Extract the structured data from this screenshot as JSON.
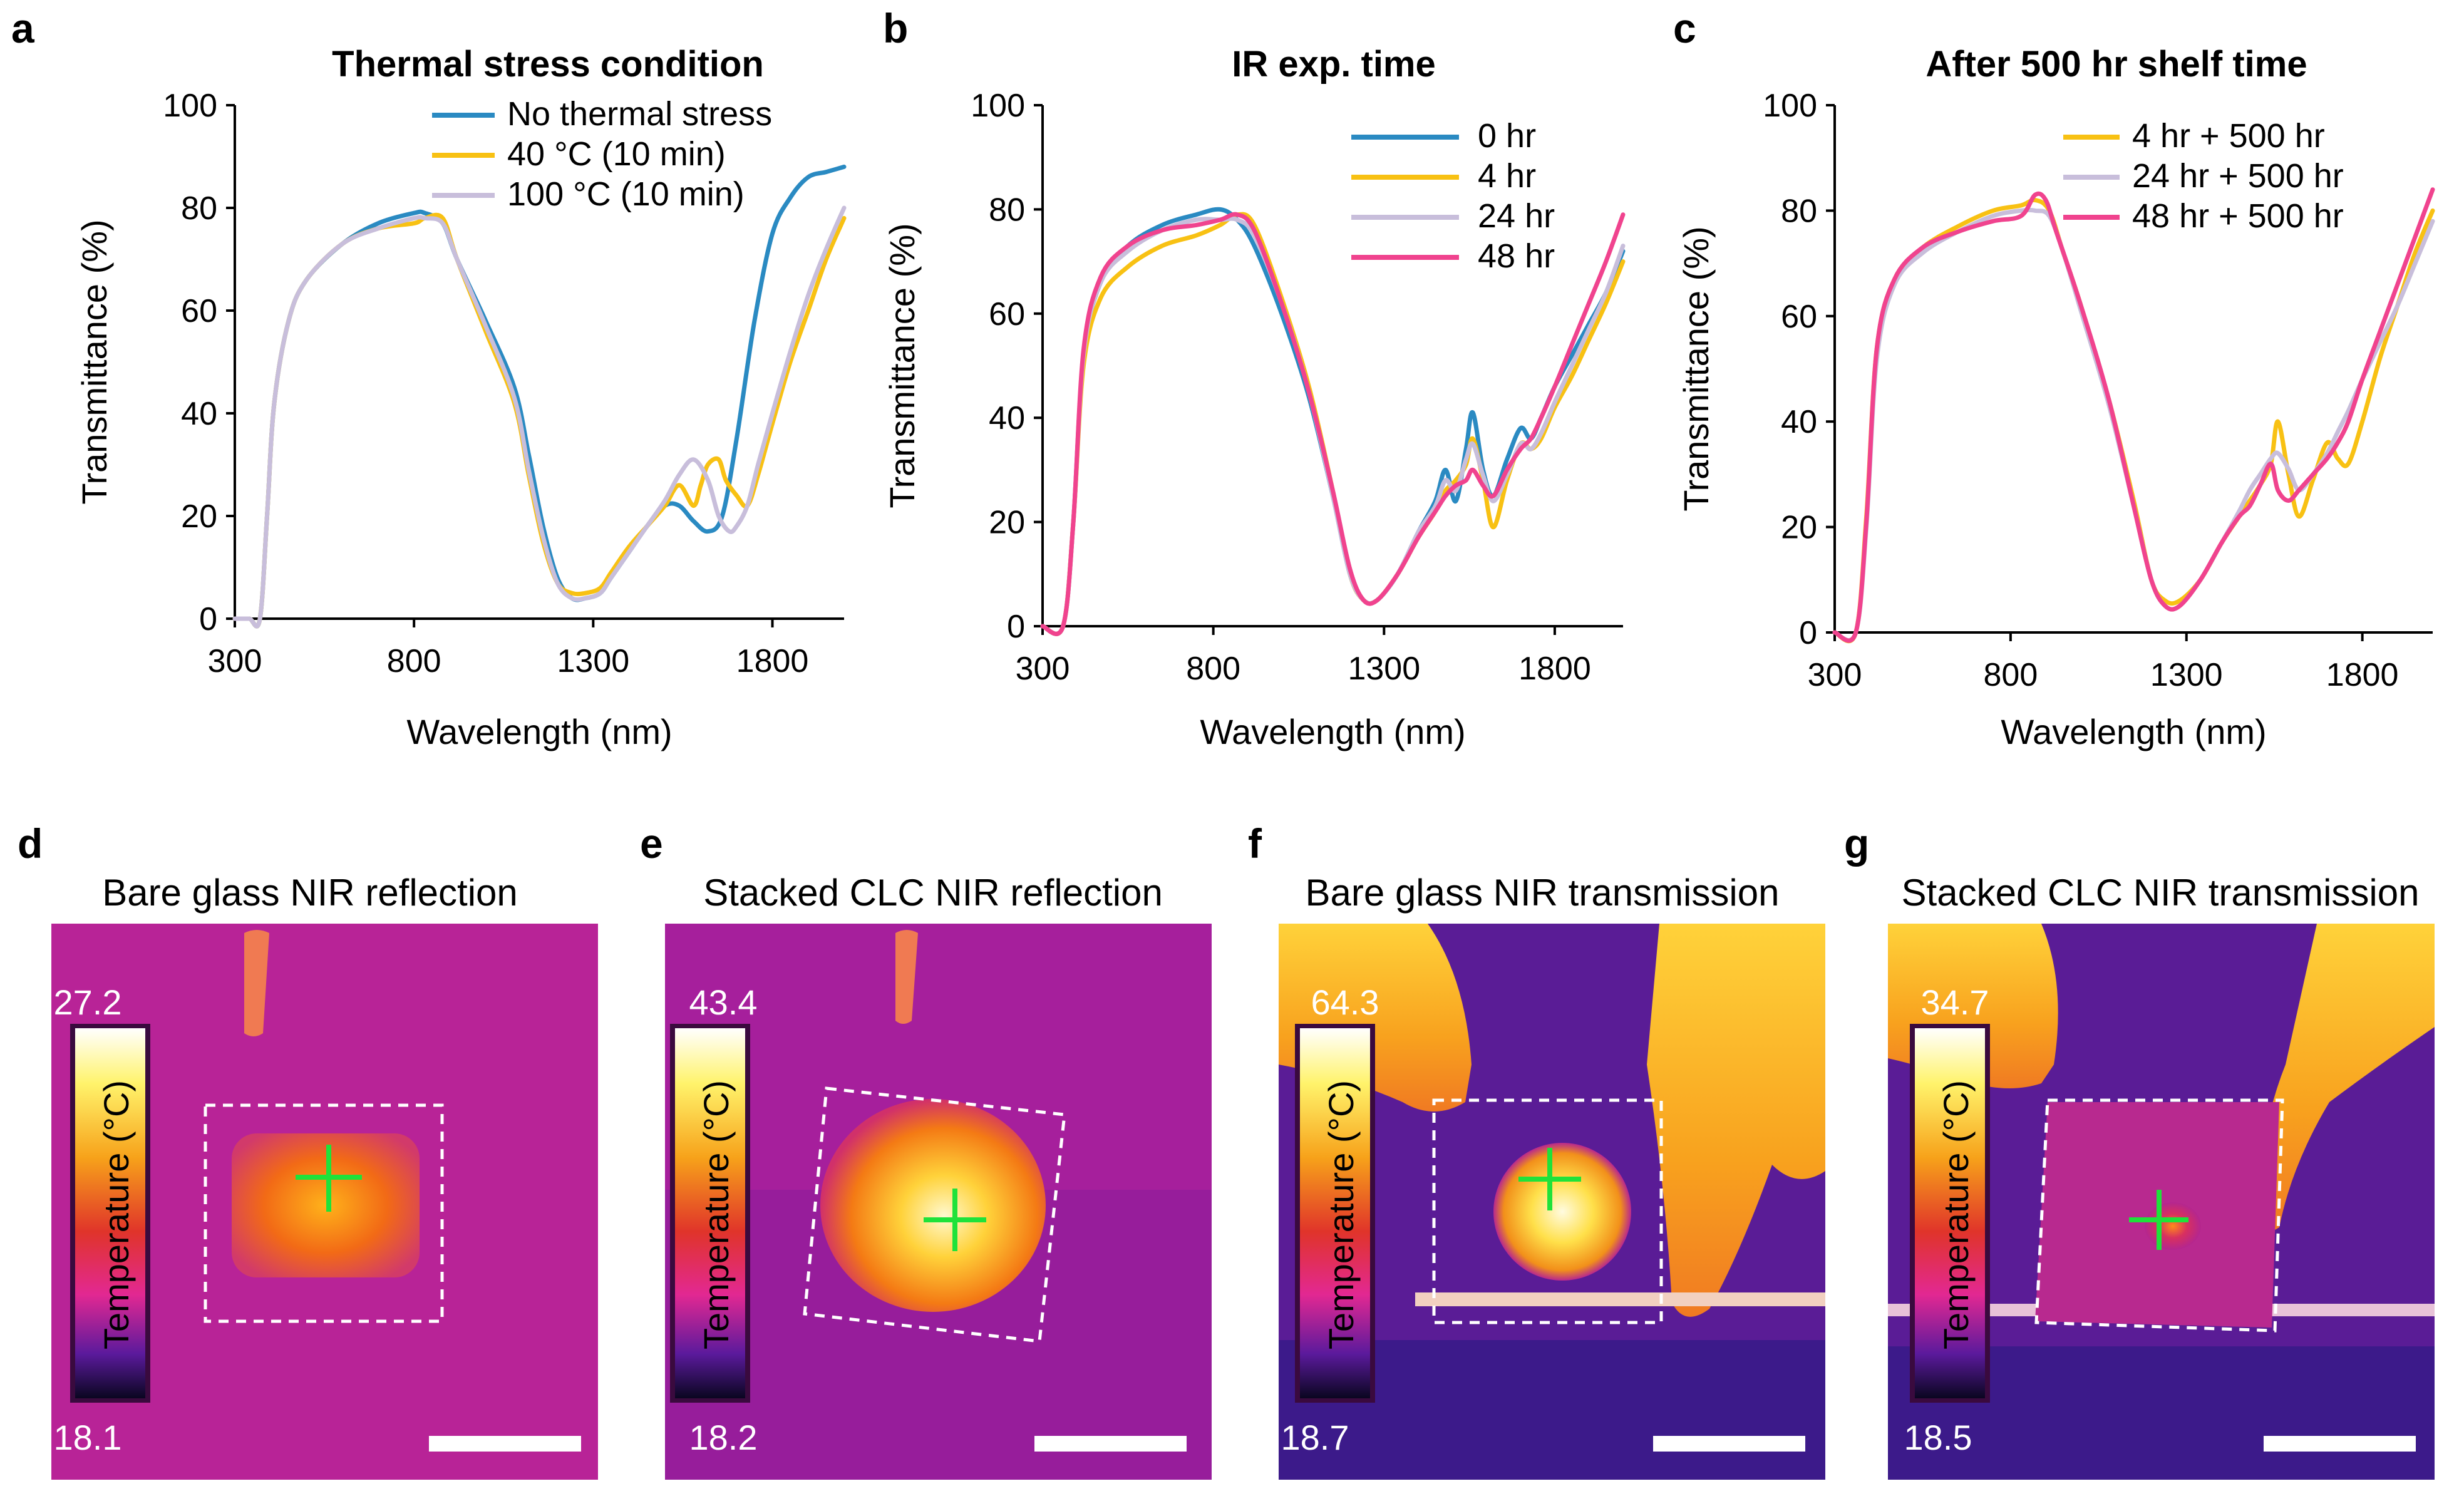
{
  "colors": {
    "blue": "#2a8ac2",
    "yellow": "#f8c113",
    "lavender": "#c8bedb",
    "pink": "#f0438e"
  },
  "chart_data": [
    {
      "panel": "a",
      "type": "line",
      "title": "Thermal stress condition",
      "xlabel": "Wavelength (nm)",
      "ylabel": "Transmittance (%)",
      "xlim": [
        300,
        2000
      ],
      "ylim": [
        0,
        100
      ],
      "xticks": [
        300,
        800,
        1300,
        1800
      ],
      "yticks": [
        0,
        20,
        40,
        60,
        80,
        100
      ],
      "legend_position": "top-right",
      "series": [
        {
          "name": "No thermal stress",
          "color": "#2a8ac2",
          "x": [
            300,
            340,
            370,
            390,
            410,
            450,
            500,
            600,
            700,
            800,
            830,
            880,
            920,
            1000,
            1080,
            1120,
            1160,
            1200,
            1240,
            1280,
            1320,
            1350,
            1400,
            1450,
            1500,
            1540,
            1580,
            1620,
            1660,
            1700,
            1750,
            1800,
            1850,
            1900,
            1950,
            2000
          ],
          "y": [
            0,
            0,
            0,
            20,
            42,
            58,
            66,
            73,
            77,
            79,
            79,
            77,
            70,
            58,
            45,
            32,
            18,
            8,
            4,
            4,
            5,
            8,
            13,
            18,
            22,
            22,
            19,
            17,
            20,
            35,
            58,
            75,
            82,
            86,
            87,
            88
          ]
        },
        {
          "name": "40 °C (10 min)",
          "color": "#f8c113",
          "x": [
            300,
            340,
            370,
            390,
            410,
            450,
            500,
            600,
            700,
            800,
            830,
            880,
            920,
            1000,
            1080,
            1120,
            1160,
            1200,
            1240,
            1280,
            1320,
            1350,
            1400,
            1450,
            1500,
            1540,
            1580,
            1600,
            1620,
            1650,
            1670,
            1700,
            1730,
            1760,
            1800,
            1850,
            1900,
            1950,
            2000
          ],
          "y": [
            0,
            0,
            0,
            20,
            42,
            58,
            66,
            73,
            76,
            77,
            78,
            78,
            70,
            56,
            42,
            28,
            15,
            7,
            5,
            5,
            6,
            9,
            14,
            18,
            22,
            26,
            22,
            26,
            30,
            31,
            27,
            24,
            22,
            28,
            38,
            50,
            60,
            70,
            78
          ]
        },
        {
          "name": "100 °C (10 min)",
          "color": "#c8bedb",
          "x": [
            300,
            340,
            370,
            390,
            410,
            450,
            500,
            600,
            700,
            800,
            830,
            880,
            920,
            1000,
            1080,
            1120,
            1160,
            1200,
            1240,
            1280,
            1320,
            1350,
            1400,
            1450,
            1500,
            1540,
            1580,
            1620,
            1650,
            1680,
            1700,
            1730,
            1760,
            1800,
            1850,
            1900,
            1950,
            2000
          ],
          "y": [
            0,
            0,
            0,
            20,
            42,
            58,
            66,
            73,
            76,
            78,
            78,
            77,
            70,
            57,
            43,
            29,
            16,
            7,
            4,
            4,
            5,
            8,
            13,
            18,
            23,
            28,
            31,
            27,
            20,
            17,
            18,
            22,
            30,
            40,
            52,
            63,
            72,
            80
          ]
        }
      ]
    },
    {
      "panel": "b",
      "type": "line",
      "title": "IR exp. time",
      "xlabel": "Wavelength (nm)",
      "ylabel": "Transmittance (%)",
      "xlim": [
        300,
        2000
      ],
      "ylim": [
        0,
        100
      ],
      "xticks": [
        300,
        800,
        1300,
        1800
      ],
      "yticks": [
        0,
        20,
        40,
        60,
        80,
        100
      ],
      "legend_position": "top-right",
      "series": [
        {
          "name": "0 hr",
          "color": "#2a8ac2",
          "x": [
            300,
            360,
            390,
            420,
            470,
            550,
            650,
            750,
            820,
            870,
            920,
            1000,
            1080,
            1150,
            1200,
            1240,
            1280,
            1340,
            1400,
            1450,
            1480,
            1510,
            1540,
            1560,
            1590,
            1620,
            1660,
            1700,
            1730,
            1760,
            1800,
            1850,
            1900,
            1950,
            2000
          ],
          "y": [
            0,
            0,
            20,
            52,
            66,
            73,
            77,
            79,
            80,
            78,
            73,
            60,
            44,
            25,
            10,
            5,
            5,
            10,
            18,
            24,
            30,
            24,
            34,
            41,
            30,
            25,
            32,
            38,
            36,
            40,
            46,
            52,
            58,
            64,
            72
          ]
        },
        {
          "name": "4 hr",
          "color": "#f8c113",
          "x": [
            300,
            360,
            390,
            420,
            470,
            550,
            650,
            750,
            820,
            870,
            920,
            1000,
            1080,
            1150,
            1200,
            1240,
            1280,
            1340,
            1400,
            1450,
            1480,
            1510,
            1540,
            1560,
            1590,
            1620,
            1660,
            1700,
            1730,
            1760,
            1800,
            1850,
            1900,
            1950,
            2000
          ],
          "y": [
            0,
            0,
            20,
            50,
            63,
            69,
            73,
            75,
            77,
            79,
            77,
            63,
            46,
            26,
            10,
            5,
            5,
            10,
            17,
            22,
            26,
            28,
            31,
            36,
            28,
            19,
            28,
            35,
            34,
            36,
            42,
            48,
            55,
            62,
            70
          ]
        },
        {
          "name": "24 hr",
          "color": "#c8bedb",
          "x": [
            300,
            360,
            390,
            420,
            470,
            550,
            650,
            750,
            820,
            870,
            920,
            1000,
            1080,
            1150,
            1200,
            1240,
            1280,
            1340,
            1400,
            1450,
            1480,
            1510,
            1540,
            1560,
            1590,
            1620,
            1660,
            1700,
            1730,
            1760,
            1800,
            1850,
            1900,
            1950,
            2000
          ],
          "y": [
            0,
            0,
            20,
            52,
            66,
            72,
            76,
            78,
            78,
            78,
            75,
            62,
            45,
            25,
            10,
            5,
            5,
            10,
            18,
            23,
            28,
            26,
            32,
            35,
            29,
            24,
            29,
            35,
            34,
            37,
            43,
            50,
            57,
            64,
            73
          ]
        },
        {
          "name": "48 hr",
          "color": "#f0438e",
          "x": [
            300,
            360,
            390,
            420,
            470,
            550,
            650,
            750,
            820,
            870,
            920,
            1000,
            1080,
            1150,
            1200,
            1240,
            1280,
            1340,
            1400,
            1450,
            1480,
            1510,
            1540,
            1560,
            1590,
            1620,
            1660,
            1700,
            1730,
            1760,
            1800,
            1850,
            1900,
            1950,
            2000
          ],
          "y": [
            0,
            0,
            20,
            53,
            67,
            73,
            76,
            77,
            78,
            79,
            76,
            62,
            45,
            26,
            11,
            5,
            5,
            10,
            17,
            22,
            25,
            27,
            28,
            30,
            27,
            25,
            30,
            34,
            36,
            40,
            46,
            54,
            62,
            70,
            79
          ]
        }
      ]
    },
    {
      "panel": "c",
      "type": "line",
      "title": "After 500 hr shelf time",
      "xlabel": "Wavelength (nm)",
      "ylabel": "Transmittance (%)",
      "xlim": [
        300,
        2000
      ],
      "ylim": [
        0,
        100
      ],
      "xticks": [
        300,
        800,
        1300,
        1800
      ],
      "yticks": [
        0,
        20,
        40,
        60,
        80,
        100
      ],
      "legend_position": "top-right",
      "series": [
        {
          "name": "4 hr + 500 hr",
          "color": "#f8c113",
          "x": [
            300,
            360,
            390,
            420,
            470,
            550,
            650,
            750,
            830,
            870,
            910,
            950,
            1000,
            1080,
            1150,
            1200,
            1240,
            1280,
            1340,
            1400,
            1450,
            1480,
            1510,
            1540,
            1560,
            1590,
            1620,
            1660,
            1700,
            1730,
            1760,
            1800,
            1850,
            1900,
            1950,
            2000
          ],
          "y": [
            0,
            0,
            22,
            54,
            67,
            73,
            77,
            80,
            81,
            82,
            80,
            72,
            62,
            44,
            25,
            10,
            6,
            6,
            10,
            17,
            22,
            25,
            28,
            32,
            40,
            30,
            22,
            29,
            36,
            33,
            32,
            40,
            52,
            62,
            72,
            80
          ]
        },
        {
          "name": "24 hr + 500 hr",
          "color": "#c8bedb",
          "x": [
            300,
            360,
            390,
            420,
            470,
            550,
            650,
            750,
            830,
            870,
            910,
            950,
            1000,
            1080,
            1150,
            1200,
            1240,
            1280,
            1340,
            1400,
            1450,
            1480,
            1510,
            1540,
            1560,
            1590,
            1620,
            1660,
            1700,
            1730,
            1760,
            1800,
            1850,
            1900,
            1950,
            2000
          ],
          "y": [
            0,
            0,
            20,
            52,
            66,
            72,
            76,
            79,
            80,
            80,
            79,
            72,
            61,
            43,
            24,
            10,
            5,
            5,
            10,
            17,
            23,
            27,
            30,
            33,
            34,
            31,
            27,
            30,
            34,
            38,
            42,
            48,
            55,
            62,
            70,
            78
          ]
        },
        {
          "name": "48 hr + 500 hr",
          "color": "#f0438e",
          "x": [
            300,
            360,
            390,
            420,
            470,
            550,
            650,
            750,
            830,
            870,
            900,
            930,
            1000,
            1080,
            1150,
            1200,
            1240,
            1280,
            1340,
            1400,
            1450,
            1480,
            1510,
            1540,
            1560,
            1590,
            1620,
            1660,
            1700,
            1730,
            1760,
            1800,
            1850,
            1900,
            1950,
            2000
          ],
          "y": [
            0,
            0,
            21,
            54,
            67,
            73,
            76,
            78,
            79,
            83,
            82,
            76,
            62,
            44,
            24,
            10,
            5,
            5,
            10,
            17,
            22,
            24,
            28,
            32,
            27,
            25,
            27,
            30,
            33,
            36,
            40,
            48,
            57,
            66,
            75,
            84
          ]
        }
      ]
    }
  ],
  "thermal_images": [
    {
      "panel": "d",
      "title": "Bare glass NIR reflection",
      "max": "27.2",
      "min": "18.1"
    },
    {
      "panel": "e",
      "title": "Stacked CLC NIR reflection",
      "max": "43.4",
      "min": "18.2"
    },
    {
      "panel": "f",
      "title": "Bare glass NIR transmission",
      "max": "64.3",
      "min": "18.7"
    },
    {
      "panel": "g",
      "title": "Stacked CLC NIR transmission",
      "max": "34.7",
      "min": "18.5"
    }
  ],
  "colorbar_label": "Temperature (°C)"
}
